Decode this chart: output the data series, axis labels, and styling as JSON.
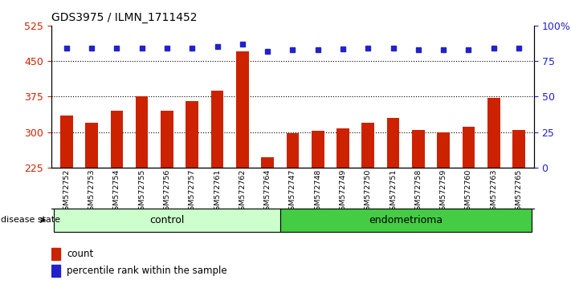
{
  "title": "GDS3975 / ILMN_1711452",
  "samples": [
    "GSM572752",
    "GSM572753",
    "GSM572754",
    "GSM572755",
    "GSM572756",
    "GSM572757",
    "GSM572761",
    "GSM572762",
    "GSM572764",
    "GSM572747",
    "GSM572748",
    "GSM572749",
    "GSM572750",
    "GSM572751",
    "GSM572758",
    "GSM572759",
    "GSM572760",
    "GSM572763",
    "GSM572765"
  ],
  "bar_values": [
    335,
    320,
    345,
    375,
    345,
    365,
    388,
    470,
    247,
    298,
    302,
    308,
    320,
    330,
    305,
    300,
    312,
    372,
    305
  ],
  "dot_values": [
    84,
    84,
    84,
    84,
    84,
    84,
    85,
    87,
    82,
    83,
    83,
    83.5,
    84,
    84,
    83,
    83,
    83,
    84,
    84
  ],
  "bar_color": "#cc2200",
  "dot_color": "#2222cc",
  "ylim_left": [
    225,
    525
  ],
  "ylim_right": [
    0,
    100
  ],
  "yticks_left": [
    225,
    300,
    375,
    450,
    525
  ],
  "yticks_right": [
    0,
    25,
    50,
    75,
    100
  ],
  "ytick_labels_right": [
    "0",
    "25",
    "50",
    "75",
    "100%"
  ],
  "hlines": [
    300,
    375,
    450
  ],
  "control_samples": 9,
  "endometrioma_samples": 10,
  "control_label": "control",
  "endometrioma_label": "endometrioma",
  "disease_state_label": "disease state",
  "legend_bar_label": "count",
  "legend_dot_label": "percentile rank within the sample",
  "bar_width": 0.5,
  "control_color": "#ccffcc",
  "endo_color": "#44cc44",
  "xtick_bg_color": "#d0d0d0"
}
